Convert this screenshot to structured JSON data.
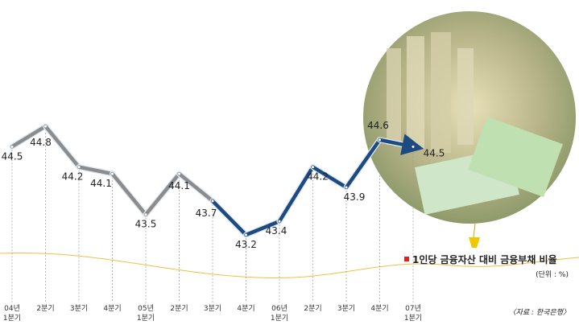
{
  "chart_data": {
    "type": "line",
    "title": "1인당 금융자산 대비 금융부채 비율",
    "unit": "(단위 : %)",
    "source": "〈자료 : 한국은행〉",
    "categories": [
      [
        "04년",
        "1분기"
      ],
      [
        "2분기"
      ],
      [
        "3분기"
      ],
      [
        "4분기"
      ],
      [
        "05년",
        "1분기"
      ],
      [
        "2분기"
      ],
      [
        "3분기"
      ],
      [
        "4분기"
      ],
      [
        "06년",
        "1분기"
      ],
      [
        "2분기"
      ],
      [
        "3분기"
      ],
      [
        "4분기"
      ],
      [
        "07년",
        "1분기"
      ]
    ],
    "values": [
      44.5,
      44.8,
      44.2,
      44.1,
      43.5,
      44.1,
      43.7,
      43.2,
      43.4,
      44.2,
      43.9,
      44.6,
      44.5
    ],
    "point_colors": [
      "#8c8c8c",
      "#8c8c8c",
      "#8c8c8c",
      "#8c8c8c",
      "#8c8c8c",
      "#8c8c8c",
      "#8c8c8c",
      "#1d4a80",
      "#1d4a80",
      "#1d4a80",
      "#1d4a80",
      "#1d4a80",
      "#1d4a80"
    ],
    "legend_color": "#e02020"
  }
}
